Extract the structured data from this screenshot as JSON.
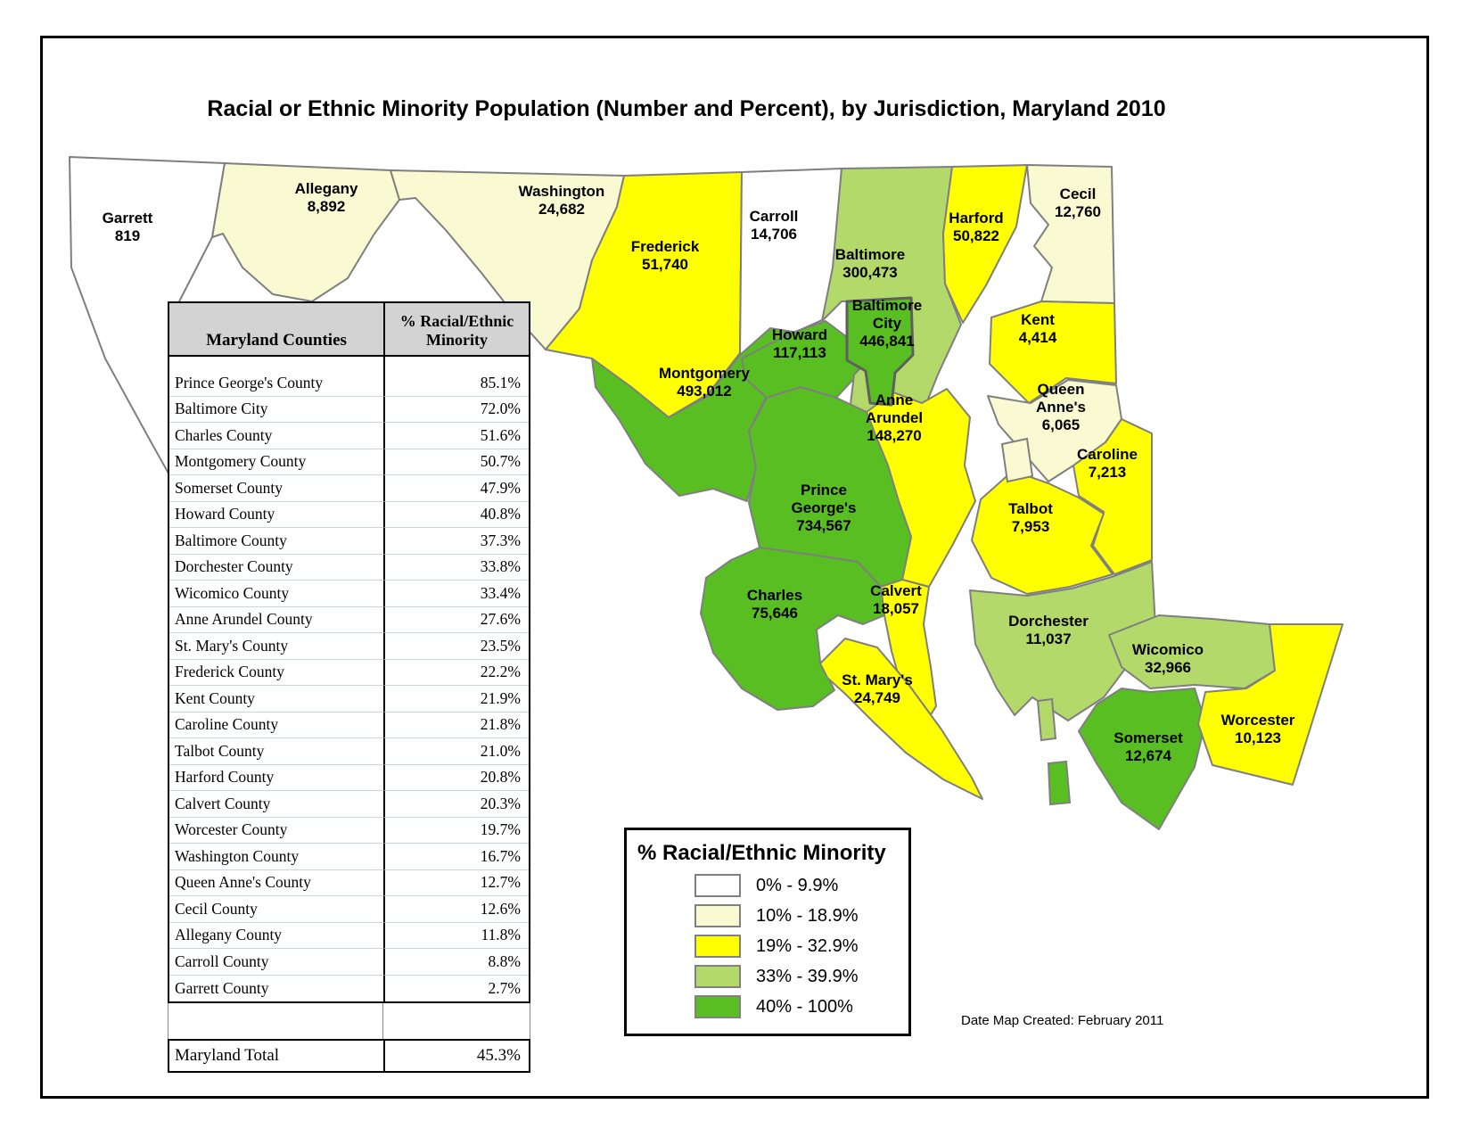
{
  "title": "Racial or Ethnic Minority Population (Number and Percent), by Jurisdiction, Maryland 2010",
  "date_note": "Date Map Created:  February 2011",
  "colors": {
    "c0": "#FFFFFF",
    "c1": "#FAFAD2",
    "c2": "#FFFF00",
    "c3": "#B3D96B",
    "c4": "#58BE22",
    "border": "#7f7f7f",
    "city_border": "#5f5f5f",
    "table_header_bg": "#D3D3D3"
  },
  "map": {
    "counties": [
      {
        "id": "garrett",
        "label": "Garrett",
        "value": "819",
        "cat": "c0"
      },
      {
        "id": "allegany",
        "label": "Allegany",
        "value": "8,892",
        "cat": "c1"
      },
      {
        "id": "washington",
        "label": "Washington",
        "value": "24,682",
        "cat": "c1"
      },
      {
        "id": "frederick",
        "label": "Frederick",
        "value": "51,740",
        "cat": "c2"
      },
      {
        "id": "carroll",
        "label": "Carroll",
        "value": "14,706",
        "cat": "c0"
      },
      {
        "id": "montgomery",
        "label": "Montgomery",
        "value": "493,012",
        "cat": "c4"
      },
      {
        "id": "howard",
        "label": "Howard",
        "value": "117,113",
        "cat": "c4"
      },
      {
        "id": "baltimore_co",
        "label": "Baltimore",
        "value": "300,473",
        "cat": "c3"
      },
      {
        "id": "harford",
        "label": "Harford",
        "value": "50,822",
        "cat": "c2"
      },
      {
        "id": "cecil",
        "label": "Cecil",
        "value": "12,760",
        "cat": "c1"
      },
      {
        "id": "kent",
        "label": "Kent",
        "value": "4,414",
        "cat": "c2"
      },
      {
        "id": "queen_annes",
        "label": "Queen\nAnne's",
        "value": "6,065",
        "cat": "c1"
      },
      {
        "id": "caroline",
        "label": "Caroline",
        "value": "7,213",
        "cat": "c2"
      },
      {
        "id": "talbot",
        "label": "Talbot",
        "value": "7,953",
        "cat": "c2"
      },
      {
        "id": "dorchester",
        "label": "Dorchester",
        "value": "11,037",
        "cat": "c3"
      },
      {
        "id": "wicomico",
        "label": "Wicomico",
        "value": "32,966",
        "cat": "c3"
      },
      {
        "id": "somerset",
        "label": "Somerset",
        "value": "12,674",
        "cat": "c4"
      },
      {
        "id": "worcester",
        "label": "Worcester",
        "value": "10,123",
        "cat": "c2"
      },
      {
        "id": "anne_arundel",
        "label": "Anne\nArundel",
        "value": "148,270",
        "cat": "c2"
      },
      {
        "id": "prince_georges",
        "label": "Prince\nGeorge's",
        "value": "734,567",
        "cat": "c4"
      },
      {
        "id": "calvert",
        "label": "Calvert",
        "value": "18,057",
        "cat": "c2"
      },
      {
        "id": "charles",
        "label": "Charles",
        "value": "75,646",
        "cat": "c4"
      },
      {
        "id": "st_marys",
        "label": "St. Mary's",
        "value": "24,749",
        "cat": "c2"
      },
      {
        "id": "baltimore_city",
        "label": "Baltimore\nCity",
        "value": "446,841",
        "cat": "c4"
      }
    ]
  },
  "table": {
    "headers": [
      "Maryland Counties",
      "% Racial/Ethnic Minority"
    ],
    "rows": [
      [
        "Prince George's County",
        "85.1%"
      ],
      [
        "Baltimore City",
        "72.0%"
      ],
      [
        "Charles County",
        "51.6%"
      ],
      [
        "Montgomery County",
        "50.7%"
      ],
      [
        "Somerset County",
        "47.9%"
      ],
      [
        "Howard County",
        "40.8%"
      ],
      [
        "Baltimore County",
        "37.3%"
      ],
      [
        "Dorchester County",
        "33.8%"
      ],
      [
        "Wicomico County",
        "33.4%"
      ],
      [
        "Anne Arundel County",
        "27.6%"
      ],
      [
        "St. Mary's County",
        "23.5%"
      ],
      [
        "Frederick County",
        "22.2%"
      ],
      [
        "Kent County",
        "21.9%"
      ],
      [
        "Caroline County",
        "21.8%"
      ],
      [
        "Talbot County",
        "21.0%"
      ],
      [
        "Harford County",
        "20.8%"
      ],
      [
        "Calvert County",
        "20.3%"
      ],
      [
        "Worcester County",
        "19.7%"
      ],
      [
        "Washington County",
        "16.7%"
      ],
      [
        "Queen Anne's County",
        "12.7%"
      ],
      [
        "Cecil County",
        "12.6%"
      ],
      [
        "Allegany County",
        "11.8%"
      ],
      [
        "Carroll County",
        "8.8%"
      ],
      [
        "Garrett County",
        "2.7%"
      ]
    ],
    "total": {
      "label": "Maryland Total",
      "value": "45.3%"
    }
  },
  "legend": {
    "title": "% Racial/Ethnic Minority",
    "items": [
      {
        "range": "0% - 9.9%",
        "cat": "c0"
      },
      {
        "range": "10% - 18.9%",
        "cat": "c1"
      },
      {
        "range": "19% - 32.9%",
        "cat": "c2"
      },
      {
        "range": "33% - 39.9%",
        "cat": "c3"
      },
      {
        "range": "40% - 100%",
        "cat": "c4"
      }
    ]
  }
}
